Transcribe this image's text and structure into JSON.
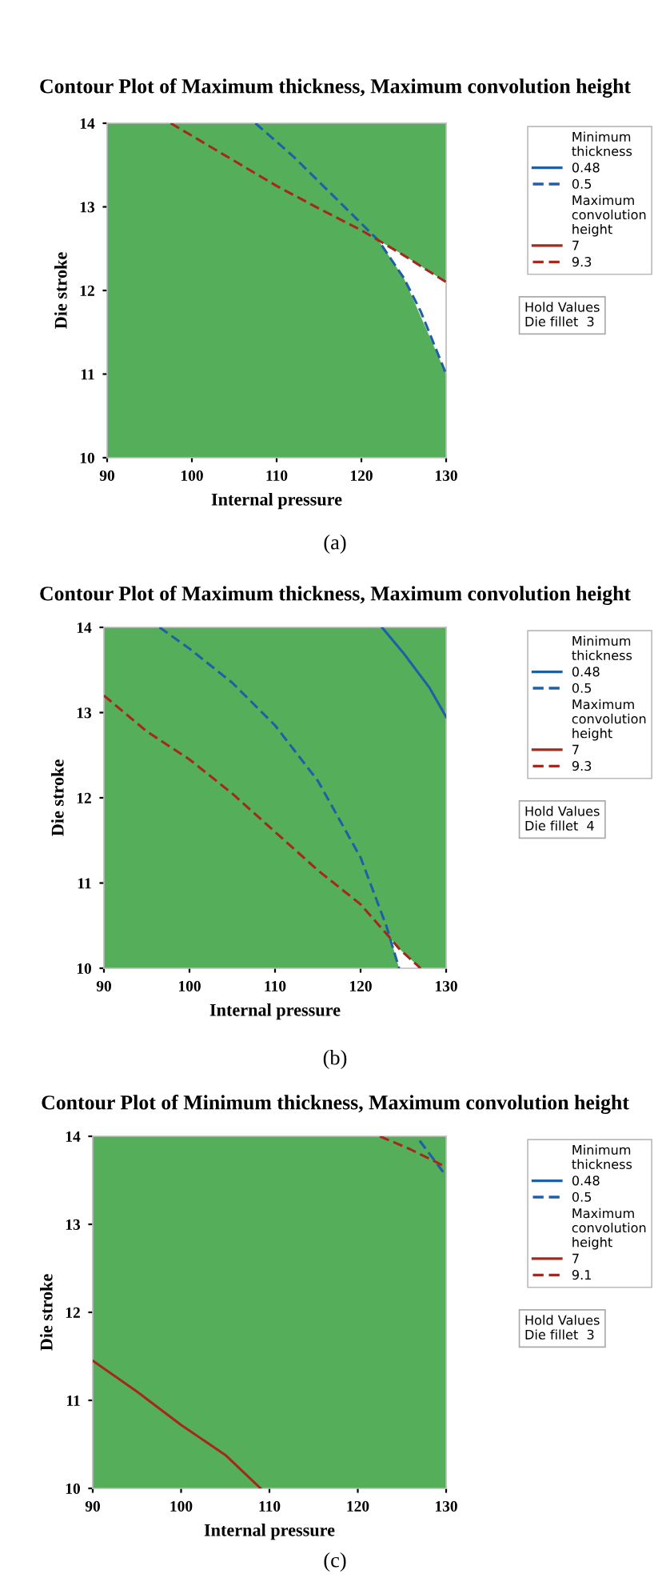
{
  "chart_data": [
    {
      "type": "line",
      "title": "Contour Plot of Maximum thickness, Maximum convolution height",
      "xlabel": "Internal pressure",
      "ylabel": "Die stroke",
      "xlim": [
        90,
        130
      ],
      "ylim": [
        10,
        14
      ],
      "xticks": [
        90,
        100,
        110,
        120,
        130
      ],
      "yticks": [
        10,
        11,
        12,
        13,
        14
      ],
      "legend": "right",
      "grid": false,
      "marker": "none",
      "bands": [
        {
          "axis": "y",
          "from": 10,
          "to": 14,
          "color": "#55ae5a"
        }
      ],
      "series": [
        {
          "name": "0.48",
          "color": "#1f5fa6",
          "line_style": "solid"
        },
        {
          "name": "0.5",
          "color": "#1f5fa6",
          "line_style": "dashed",
          "x": [
            107.5,
            112,
            116,
            120,
            122,
            125,
            127,
            130
          ],
          "values": [
            14,
            13.6,
            13.2,
            12.8,
            12.6,
            12.15,
            11.75,
            11.0
          ]
        },
        {
          "name": "7",
          "color": "#a5281e",
          "line_style": "solid"
        },
        {
          "name": "9.3",
          "color": "#a5281e",
          "line_style": "dashed",
          "x": [
            97.5,
            100,
            105,
            110,
            115,
            120,
            122,
            125,
            130
          ],
          "values": [
            14,
            13.85,
            13.55,
            13.25,
            12.98,
            12.72,
            12.6,
            12.42,
            12.1
          ],
          "lower": [
            null,
            null,
            null,
            null,
            null,
            null,
            12.6,
            12.15,
            11.0
          ],
          "upper": [
            null,
            null,
            null,
            null,
            null,
            null,
            12.6,
            12.42,
            12.1
          ]
        }
      ],
      "annotations": [
        "Minimum thickness",
        "Maximum convolution height",
        "Hold Values\nDie fillet  3",
        "(a)"
      ]
    },
    {
      "type": "line",
      "title": "Contour Plot of Maximum thickness, Maximum convolution height",
      "xlabel": "Internal pressure",
      "ylabel": "Die stroke",
      "xlim": [
        90,
        130
      ],
      "ylim": [
        10,
        14
      ],
      "xticks": [
        90,
        100,
        110,
        120,
        130
      ],
      "yticks": [
        10,
        11,
        12,
        13,
        14
      ],
      "legend": "right",
      "grid": false,
      "marker": "none",
      "bands": [
        {
          "axis": "y",
          "from": 10,
          "to": 14,
          "color": "#55ae5a"
        }
      ],
      "series": [
        {
          "name": "0.48",
          "color": "#1f5fa6",
          "line_style": "solid",
          "x": [
            122.5,
            125,
            128,
            130
          ],
          "values": [
            14,
            13.7,
            13.3,
            12.95
          ]
        },
        {
          "name": "0.5",
          "color": "#1f5fa6",
          "line_style": "dashed",
          "x": [
            96.5,
            100,
            105,
            110,
            115,
            120,
            123,
            124.5
          ],
          "values": [
            14,
            13.75,
            13.35,
            12.85,
            12.2,
            11.3,
            10.5,
            10.0
          ]
        },
        {
          "name": "7",
          "color": "#a5281e",
          "line_style": "solid"
        },
        {
          "name": "9.3",
          "color": "#a5281e",
          "line_style": "dashed",
          "x": [
            90,
            95,
            100,
            105,
            110,
            115,
            120,
            123.5,
            124.5,
            127
          ],
          "values": [
            13.2,
            12.78,
            12.45,
            12.05,
            11.6,
            11.15,
            10.75,
            10.35,
            10.23,
            10.0
          ],
          "lower": [
            null,
            null,
            null,
            null,
            null,
            null,
            null,
            10.35,
            10.0,
            10.0
          ],
          "upper": [
            null,
            null,
            null,
            null,
            null,
            null,
            null,
            10.35,
            10.23,
            10.0
          ]
        }
      ],
      "annotations": [
        "Minimum thickness",
        "Maximum convolution height",
        "Hold Values\nDie fillet  4",
        "(b)"
      ]
    },
    {
      "type": "line",
      "title": "Contour Plot of Minimum thickness, Maximum convolution height",
      "xlabel": "Internal pressure",
      "ylabel": "Die stroke",
      "xlim": [
        90,
        130
      ],
      "ylim": [
        10,
        14
      ],
      "xticks": [
        90,
        100,
        110,
        120,
        130
      ],
      "yticks": [
        10,
        11,
        12,
        13,
        14
      ],
      "legend": "right",
      "grid": false,
      "marker": "none",
      "bands": [
        {
          "axis": "y",
          "from": 10,
          "to": 14,
          "color": "#55ae5a"
        }
      ],
      "series": [
        {
          "name": "0.48",
          "color": "#1f5fa6",
          "line_style": "solid"
        },
        {
          "name": "0.5",
          "color": "#1f5fa6",
          "line_style": "dashed",
          "x": [
            127,
            130
          ],
          "values": [
            13.95,
            13.55
          ]
        },
        {
          "name": "7",
          "color": "#a5281e",
          "line_style": "solid",
          "x": [
            90,
            95,
            100,
            105,
            109
          ],
          "values": [
            11.45,
            11.1,
            10.72,
            10.38,
            10.0
          ]
        },
        {
          "name": "9.1",
          "color": "#a5281e",
          "line_style": "dashed",
          "x": [
            122.5,
            126,
            130
          ],
          "values": [
            14,
            13.85,
            13.65
          ]
        }
      ],
      "annotations": [
        "Minimum thickness",
        "Maximum convolution height",
        "Hold Values\nDie fillet  3",
        "(c)"
      ]
    }
  ]
}
